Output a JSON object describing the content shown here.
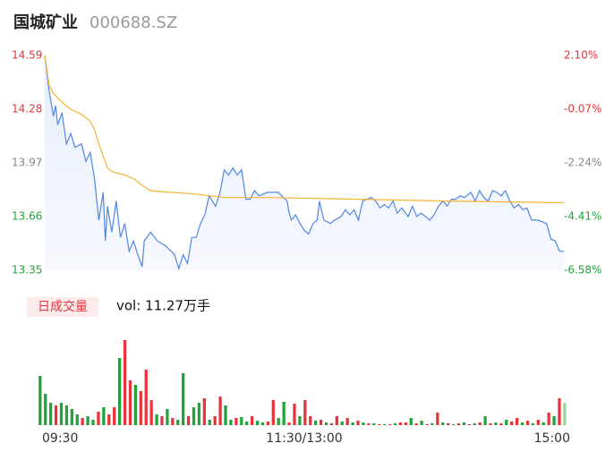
{
  "header": {
    "title": "国城矿业",
    "code": "000688.SZ"
  },
  "chart_data": [
    {
      "type": "line",
      "ylim": [
        13.35,
        14.59
      ],
      "yticks": [
        13.35,
        13.66,
        13.97,
        14.28,
        14.59
      ],
      "y2lim": [
        -6.58,
        2.1
      ],
      "y2ticks": [
        {
          "value": -6.58,
          "label": "-6.58%"
        },
        {
          "value": -4.41,
          "label": "-4.41%"
        },
        {
          "value": -2.24,
          "label": "-2.24%"
        },
        {
          "value": -0.07,
          "label": "-0.07%"
        },
        {
          "value": 2.1,
          "label": "2.10%"
        }
      ],
      "tick_colors": [
        "#22a33a",
        "#22a33a",
        "#888888",
        "#e8333b",
        "#e8333b"
      ],
      "xlim": [
        0,
        240
      ],
      "series": [
        {
          "color": "#4f86e6",
          "x": [
            0,
            2,
            4,
            5,
            6,
            8,
            10,
            12,
            14,
            17,
            19,
            21,
            23,
            25,
            27,
            28,
            29,
            31,
            33,
            35,
            37,
            39,
            41,
            43,
            45,
            46,
            49,
            52,
            56,
            60,
            62,
            64,
            66,
            68,
            70,
            72,
            74,
            76,
            79,
            81,
            83,
            85,
            87,
            89,
            91,
            93,
            95,
            97,
            99,
            103,
            108,
            112,
            113,
            114,
            116,
            118,
            120,
            122,
            124,
            126,
            127,
            129,
            132,
            134,
            137,
            139,
            141,
            143,
            145,
            147,
            149,
            151,
            153,
            155,
            157,
            159,
            161,
            163,
            165,
            168,
            170,
            172,
            174,
            178,
            180,
            182,
            184,
            186,
            188,
            190,
            192,
            194,
            197,
            199,
            201,
            203,
            205,
            207,
            209,
            211,
            213,
            215,
            217,
            219,
            221,
            223,
            225,
            228,
            230,
            232,
            234,
            236,
            238,
            240
          ],
          "values": [
            14.59,
            14.39,
            14.24,
            14.3,
            14.19,
            14.26,
            14.08,
            14.14,
            14.06,
            14.08,
            13.98,
            14.03,
            13.88,
            13.64,
            13.8,
            13.52,
            13.72,
            13.57,
            13.75,
            13.54,
            13.62,
            13.46,
            13.52,
            13.44,
            13.37,
            13.52,
            13.57,
            13.52,
            13.49,
            13.44,
            13.36,
            13.44,
            13.39,
            13.54,
            13.54,
            13.62,
            13.67,
            13.78,
            13.72,
            13.8,
            13.93,
            13.9,
            13.94,
            13.9,
            13.93,
            13.76,
            13.76,
            13.81,
            13.78,
            13.8,
            13.8,
            13.75,
            13.68,
            13.64,
            13.67,
            13.62,
            13.58,
            13.56,
            13.62,
            13.64,
            13.75,
            13.64,
            13.62,
            13.64,
            13.66,
            13.7,
            13.67,
            13.7,
            13.64,
            13.75,
            13.76,
            13.77,
            13.75,
            13.71,
            13.73,
            13.71,
            13.75,
            13.68,
            13.71,
            13.66,
            13.72,
            13.66,
            13.68,
            13.64,
            13.67,
            13.72,
            13.75,
            13.72,
            13.76,
            13.76,
            13.78,
            13.77,
            13.8,
            13.75,
            13.81,
            13.77,
            13.75,
            13.81,
            13.8,
            13.78,
            13.81,
            13.75,
            13.71,
            13.73,
            13.7,
            13.71,
            13.64,
            13.64,
            13.63,
            13.62,
            13.53,
            13.52,
            13.46,
            13.46
          ]
        },
        {
          "color": "#f5b335",
          "x": [
            0,
            2,
            4,
            8,
            12,
            17,
            21,
            23,
            25,
            27,
            29,
            31,
            37,
            41,
            45,
            49,
            58,
            70,
            83,
            103,
            145,
            186,
            240
          ],
          "values": [
            14.59,
            14.42,
            14.37,
            14.32,
            14.28,
            14.25,
            14.21,
            14.16,
            14.08,
            14.01,
            13.94,
            13.92,
            13.9,
            13.88,
            13.84,
            13.81,
            13.8,
            13.79,
            13.77,
            13.77,
            13.76,
            13.75,
            13.74
          ]
        }
      ]
    },
    {
      "type": "bar",
      "label": "日成交量",
      "volume_text": "vol: 11.27万手",
      "ylim": [
        0,
        95
      ],
      "xlim": [
        0,
        240
      ],
      "xticks": [
        {
          "value": 0,
          "label": "09:30"
        },
        {
          "value": 120,
          "label": "11:30/13:00"
        },
        {
          "value": 240,
          "label": "15:00"
        }
      ],
      "values": [
        55,
        35,
        25,
        22,
        25,
        22,
        18,
        12,
        8,
        10,
        6,
        15,
        20,
        12,
        20,
        75,
        95,
        50,
        45,
        38,
        62,
        28,
        12,
        10,
        18,
        8,
        6,
        58,
        10,
        20,
        25,
        30,
        6,
        10,
        32,
        22,
        6,
        8,
        9,
        4,
        10,
        5,
        3,
        4,
        28,
        8,
        26,
        3,
        24,
        10,
        28,
        10,
        5,
        6,
        3,
        2,
        10,
        4,
        8,
        3,
        5,
        3,
        2,
        2,
        1,
        1,
        1,
        2,
        3,
        3,
        8,
        2,
        5,
        1,
        2,
        14,
        3,
        2,
        1,
        2,
        3,
        1,
        2,
        3,
        10,
        2,
        3,
        2,
        6,
        4,
        8,
        3,
        5,
        2,
        6,
        3,
        14,
        10,
        30,
        25
      ],
      "colors": [
        "#22a33a",
        "#22a33a",
        "#22a33a",
        "#e8333b",
        "#22a33a",
        "#22a33a",
        "#22a33a",
        "#22a33a",
        "#e8333b",
        "#22a33a",
        "#22a33a",
        "#e8333b",
        "#22a33a",
        "#e8333b",
        "#e8333b",
        "#22a33a",
        "#e8333b",
        "#e8333b",
        "#22a33a",
        "#e8333b",
        "#e8333b",
        "#e8333b",
        "#22a33a",
        "#e8333b",
        "#22a33a",
        "#e8333b",
        "#22a33a",
        "#22a33a",
        "#e8333b",
        "#22a33a",
        "#22a33a",
        "#e8333b",
        "#22a33a",
        "#e8333b",
        "#e8333b",
        "#22a33a",
        "#22a33a",
        "#e8333b",
        "#22a33a",
        "#22a33a",
        "#e8333b",
        "#22a33a",
        "#22a33a",
        "#e8333b",
        "#e8333b",
        "#22a33a",
        "#22a33a",
        "#e8333b",
        "#e8333b",
        "#22a33a",
        "#e8333b",
        "#e8333b",
        "#22a33a",
        "#e8333b",
        "#22a33a",
        "#e8333b",
        "#e8333b",
        "#22a33a",
        "#e8333b",
        "#22a33a",
        "#e8333b",
        "#22a33a",
        "#e8333b",
        "#22a33a",
        "#e8333b",
        "#22a33a",
        "#e8333b",
        "#22a33a",
        "#e8333b",
        "#e8333b",
        "#22a33a",
        "#e8333b",
        "#22a33a",
        "#e8333b",
        "#22a33a",
        "#e8333b",
        "#22a33a",
        "#e8333b",
        "#22a33a",
        "#e8333b",
        "#22a33a",
        "#e8333b",
        "#22a33a",
        "#e8333b",
        "#22a33a",
        "#e8333b",
        "#22a33a",
        "#e8333b",
        "#22a33a",
        "#e8333b",
        "#e8333b",
        "#22a33a",
        "#e8333b",
        "#22a33a",
        "#e8333b",
        "#22a33a",
        "#e8333b",
        "#22a33a",
        "#e8333b",
        "#9ad89a"
      ]
    }
  ]
}
